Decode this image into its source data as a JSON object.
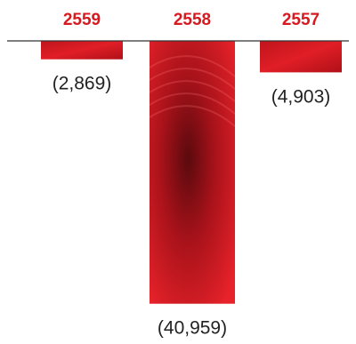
{
  "chart_data": {
    "type": "bar",
    "categories": [
      "2559",
      "2558",
      "2557"
    ],
    "values": [
      -2869,
      -40959,
      -4903
    ],
    "value_labels": [
      "(2,869)",
      "(40,959)",
      "(4,903)"
    ],
    "title": "",
    "xlabel": "",
    "ylabel": "",
    "ylim": [
      -41000,
      0
    ],
    "grid": false,
    "legend": "none"
  },
  "colors": {
    "category_label": "#d71920",
    "bar_dark": "#7a0a10",
    "bar_mid": "#c0141c",
    "bar_light": "#e8222a",
    "axis": "#333333",
    "value_label": "#222222"
  }
}
